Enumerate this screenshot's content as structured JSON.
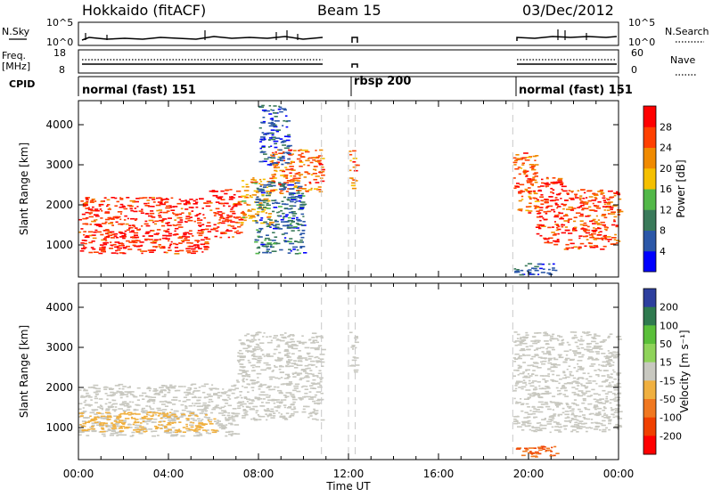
{
  "header": {
    "station": "Hokkaido (fitACF)",
    "beam": "Beam 15",
    "date": "03/Dec/2012"
  },
  "strip_sky": {
    "left_label": "N.Sky",
    "top_tick": "10^5",
    "bottom_tick": "10^0",
    "right_top_tick": "10^5",
    "right_bottom_tick": "10^0",
    "right_label": "N.Search"
  },
  "strip_freq": {
    "left_label_top": "Freq.",
    "left_label_bottom": "[MHz]",
    "left_tick_top": "18",
    "left_tick_bottom": "8",
    "right_tick_top": "60",
    "right_tick_bottom": "0",
    "right_label": "Nave"
  },
  "cpid": {
    "label": "CPID",
    "modes": [
      {
        "text": "normal (fast) 151",
        "start_hour": 0
      },
      {
        "text": "rbsp 200",
        "start_hour": 12
      },
      {
        "text": "normal (fast) 151",
        "start_hour": 19.3
      }
    ]
  },
  "x_axis": {
    "title": "Time UT",
    "ticks": [
      "00:00",
      "04:00",
      "08:00",
      "12:00",
      "16:00",
      "20:00",
      "00:00"
    ],
    "range_hours": [
      0,
      24
    ]
  },
  "power_panel": {
    "ylabel": "Slant Range [km]",
    "yticks": [
      "1000",
      "2000",
      "3000",
      "4000"
    ],
    "colorbar_label": "Power [dB]",
    "colorbar_ticks": [
      "4",
      "8",
      "12",
      "16",
      "20",
      "24",
      "28"
    ],
    "colors": [
      "#0000ff",
      "#2b57a8",
      "#3a7a5a",
      "#52b848",
      "#f5c000",
      "#f08a00",
      "#ff4000",
      "#ff0000"
    ]
  },
  "velocity_panel": {
    "ylabel": "Slant Range [km]",
    "yticks": [
      "1000",
      "2000",
      "3000",
      "4000"
    ],
    "colorbar_label": "Velocity [m s⁻¹]",
    "colorbar_ticks": [
      "200",
      "100",
      "50",
      "15",
      "-15",
      "-50",
      "-100",
      "-200"
    ],
    "colors": [
      "#2d3f9e",
      "#2f7a4f",
      "#5abf3a",
      "#8fd35a",
      "#c8c8c0",
      "#f0b040",
      "#f07820",
      "#f04000",
      "#ff0000"
    ]
  },
  "chart_data": {
    "type": "heatmap",
    "x_range_hours": [
      0,
      24
    ],
    "y_range_km": [
      200,
      4600
    ],
    "data_gaps_hours": [
      [
        10.8,
        12.0
      ],
      [
        12.3,
        19.3
      ]
    ],
    "power_regions_dB": [
      {
        "t0": 0.0,
        "t1": 5.8,
        "r0": 800,
        "r1": 2200,
        "power": 28
      },
      {
        "t0": 5.8,
        "t1": 7.2,
        "r0": 1200,
        "r1": 2400,
        "power": 28
      },
      {
        "t0": 7.2,
        "t1": 8.5,
        "r0": 1500,
        "r1": 2700,
        "power": 20
      },
      {
        "t0": 8.5,
        "t1": 10.8,
        "r0": 2300,
        "r1": 3400,
        "power": 24
      },
      {
        "t0": 7.8,
        "t1": 10.0,
        "r0": 800,
        "r1": 2600,
        "power": 8
      },
      {
        "t0": 8.0,
        "t1": 9.3,
        "r0": 3000,
        "r1": 4500,
        "power": 6
      },
      {
        "t0": 12.0,
        "t1": 12.3,
        "r0": 2400,
        "r1": 3400,
        "power": 24
      },
      {
        "t0": 19.3,
        "t1": 20.3,
        "r0": 1800,
        "r1": 3400,
        "power": 24
      },
      {
        "t0": 20.3,
        "t1": 21.5,
        "r0": 1000,
        "r1": 2700,
        "power": 28
      },
      {
        "t0": 21.5,
        "t1": 24.0,
        "r0": 900,
        "r1": 2400,
        "power": 26
      },
      {
        "t0": 19.3,
        "t1": 21.2,
        "r0": 250,
        "r1": 550,
        "power": 6
      }
    ],
    "velocity_regions_mps": [
      {
        "t0": 0.0,
        "t1": 7.0,
        "r0": 800,
        "r1": 2100,
        "velocity": 0
      },
      {
        "t0": 7.0,
        "t1": 10.8,
        "r0": 1200,
        "r1": 3400,
        "velocity": 0
      },
      {
        "t0": 12.0,
        "t1": 12.3,
        "r0": 2400,
        "r1": 3400,
        "velocity": 0
      },
      {
        "t0": 19.3,
        "t1": 24.0,
        "r0": 900,
        "r1": 3400,
        "velocity": 0
      },
      {
        "t0": 19.3,
        "t1": 21.2,
        "r0": 250,
        "r1": 550,
        "velocity": -100
      },
      {
        "t0": 0.0,
        "t1": 6.0,
        "r0": 900,
        "r1": 1400,
        "velocity": -30
      }
    ]
  }
}
